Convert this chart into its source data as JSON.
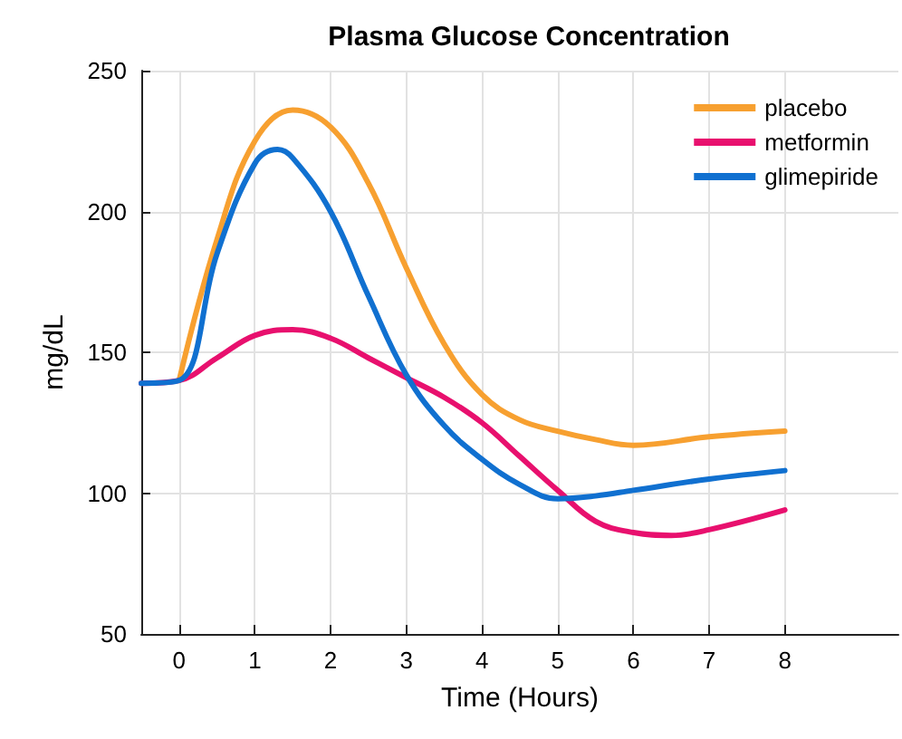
{
  "chart_data": {
    "type": "line",
    "title": "Plasma Glucose Concentration",
    "xlabel": "Time (Hours)",
    "ylabel": "mg/dL",
    "xlim": [
      -0.5,
      9.5
    ],
    "xticks": [
      0,
      1,
      2,
      3,
      4,
      5,
      6,
      7,
      8
    ],
    "ylim": [
      50,
      250
    ],
    "yticks": [
      50,
      100,
      150,
      200,
      250
    ],
    "grid": true,
    "legend": "top right",
    "marker": "none",
    "line_style": "solid",
    "series": [
      {
        "name": "placebo",
        "color": "#f7a030",
        "x": [
          0,
          0.5,
          1,
          1.5,
          2,
          2.5,
          3,
          3.5,
          4,
          4.5,
          5,
          5.5,
          6,
          7,
          8
        ],
        "values": [
          140,
          190,
          225,
          236,
          230,
          210,
          180,
          153,
          135,
          126,
          122,
          119,
          117,
          120,
          122
        ]
      },
      {
        "name": "metformin",
        "color": "#e8106e",
        "x": [
          -0.5,
          0,
          0.5,
          1,
          1.5,
          2,
          2.5,
          3,
          3.5,
          4,
          4.5,
          5,
          5.5,
          6,
          6.5,
          7,
          8
        ],
        "values": [
          139,
          140,
          148,
          156,
          158,
          155,
          148,
          141,
          134,
          125,
          113,
          101,
          90,
          86,
          85,
          87,
          94
        ]
      },
      {
        "name": "glimepiride",
        "color": "#1070d0",
        "x": [
          -0.5,
          0,
          0.5,
          1,
          1.3,
          1.5,
          2,
          2.5,
          3,
          3.5,
          4,
          4.5,
          5,
          5.5,
          6,
          7,
          8
        ],
        "values": [
          139,
          140,
          185,
          217,
          222,
          219,
          200,
          170,
          142,
          124,
          112,
          103,
          98,
          99,
          101,
          105,
          108
        ]
      }
    ]
  }
}
